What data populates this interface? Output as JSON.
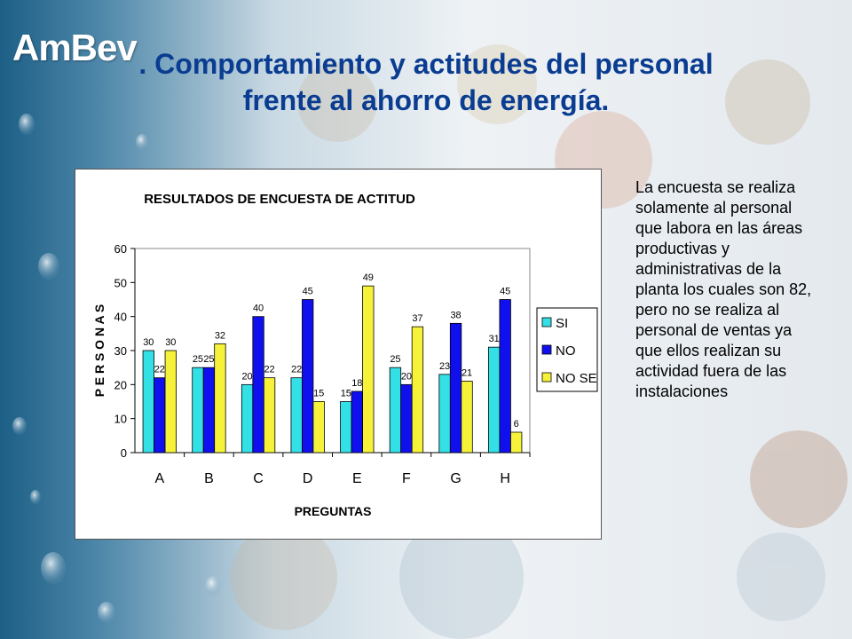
{
  "logo": {
    "text": "AmBev"
  },
  "slide": {
    "title_line1": ". Comportamiento y actitudes del personal",
    "title_line2": "frente al ahorro de energía.",
    "description": "La encuesta se realiza solamente al personal que labora en las áreas productivas y administrativas de la planta los cuales son 82, pero no se realiza al personal de ventas ya que ellos realizan su actividad fuera de las instalaciones"
  },
  "colors": {
    "title": "#0a3d91",
    "si": "#33e0e6",
    "no": "#1010ee",
    "no_se": "#f6f23a"
  },
  "chart_data": {
    "type": "bar",
    "title": "RESULTADOS DE ENCUESTA DE ACTITUD",
    "xlabel": "PREGUNTAS",
    "ylabel": "P E R S O N A S",
    "categories": [
      "A",
      "B",
      "C",
      "D",
      "E",
      "F",
      "G",
      "H"
    ],
    "ylim": [
      0,
      60
    ],
    "yticks": [
      0,
      10,
      20,
      30,
      40,
      50,
      60
    ],
    "legend_position": "right",
    "grid": false,
    "series": [
      {
        "name": "SI",
        "color": "#33e0e6",
        "values": [
          30,
          25,
          20,
          22,
          15,
          25,
          23,
          31
        ]
      },
      {
        "name": "NO",
        "color": "#1010ee",
        "values": [
          22,
          25,
          40,
          45,
          18,
          20,
          38,
          45
        ]
      },
      {
        "name": "NO SE",
        "color": "#f6f23a",
        "values": [
          30,
          32,
          22,
          15,
          49,
          37,
          21,
          6
        ]
      }
    ]
  }
}
